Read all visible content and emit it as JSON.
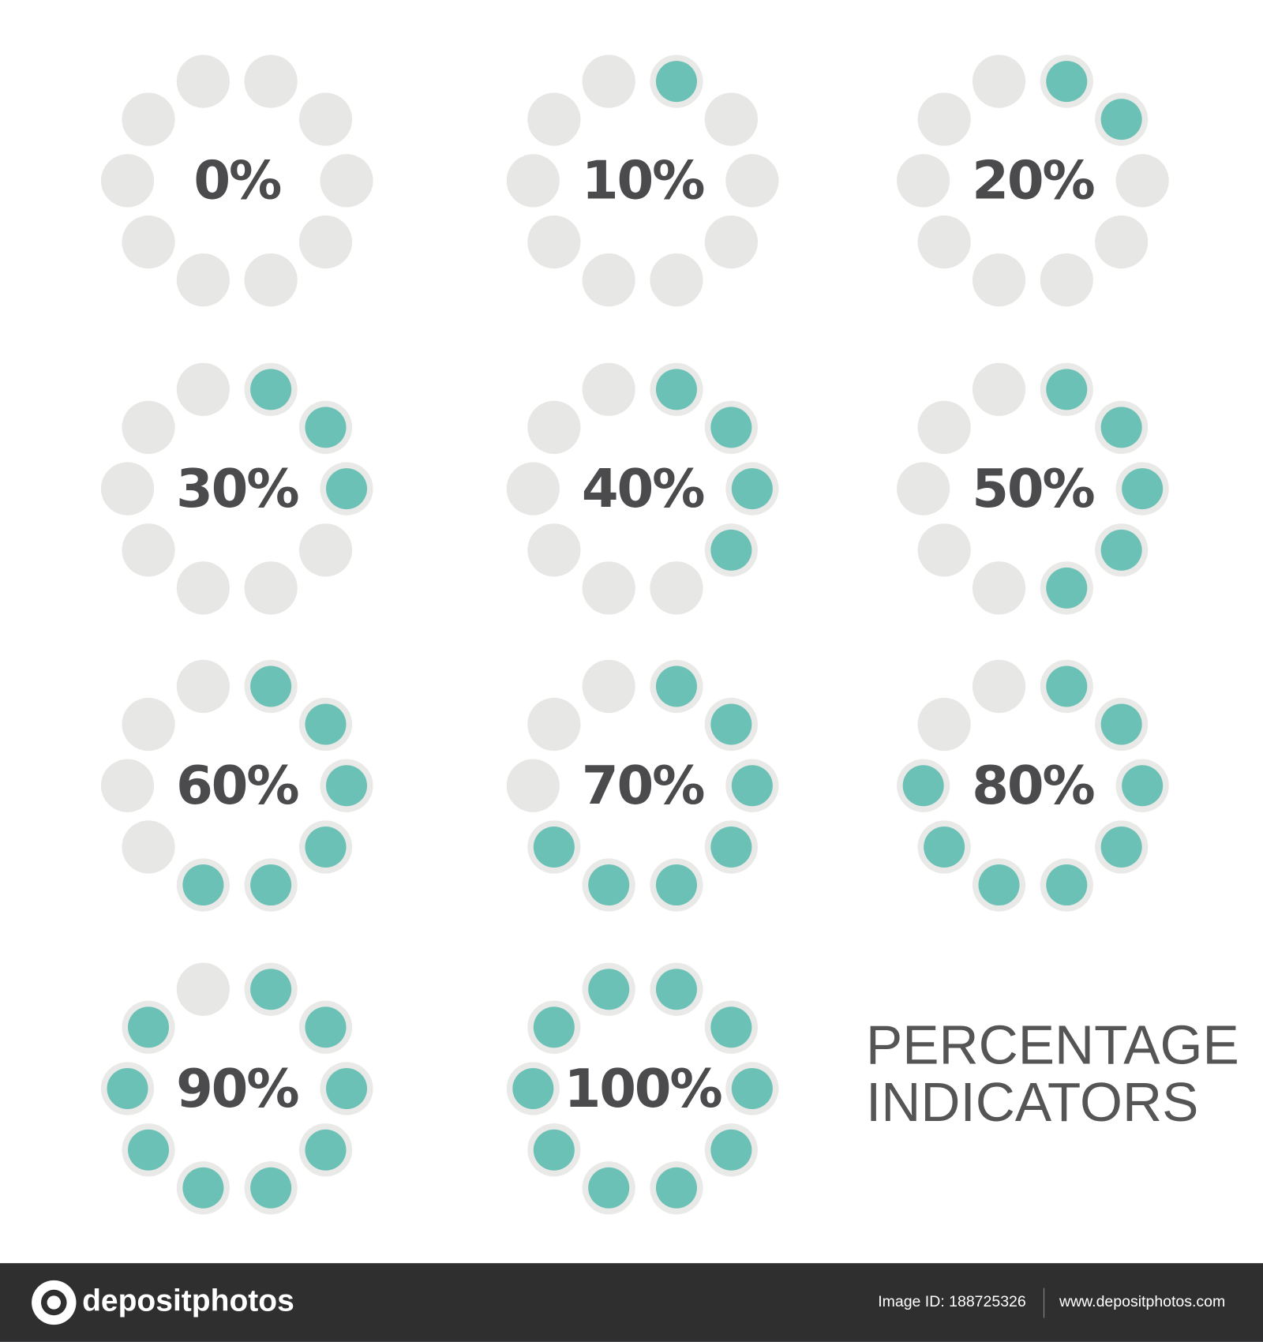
{
  "indicators": [
    {
      "value": 0,
      "label": "0%"
    },
    {
      "value": 10,
      "label": "10%"
    },
    {
      "value": 20,
      "label": "20%"
    },
    {
      "value": 30,
      "label": "30%"
    },
    {
      "value": 40,
      "label": "40%"
    },
    {
      "value": 50,
      "label": "50%"
    },
    {
      "value": 60,
      "label": "60%"
    },
    {
      "value": 70,
      "label": "70%"
    },
    {
      "value": 80,
      "label": "80%"
    },
    {
      "value": 90,
      "label": "90%"
    },
    {
      "value": 100,
      "label": "100%"
    }
  ],
  "title": {
    "line1": "PERCENTAGE",
    "line2": "INDICATORS"
  },
  "footer": {
    "brand": "depositphotos",
    "image_id": "Image ID: 188725326",
    "url": "www.depositphotos.com"
  }
}
